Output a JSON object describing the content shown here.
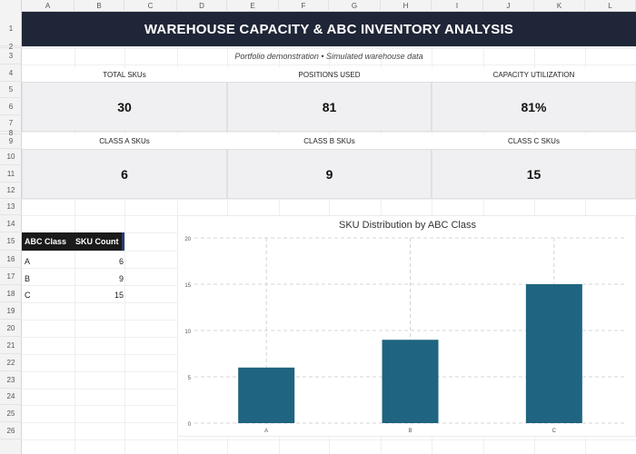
{
  "columns": [
    "A",
    "B",
    "C",
    "D",
    "E",
    "F",
    "G",
    "H",
    "I",
    "J",
    "K",
    "L"
  ],
  "rows": [
    "1",
    "2",
    "3",
    "4",
    "5",
    "6",
    "7",
    "8",
    "9",
    "10",
    "11",
    "12",
    "13",
    "14",
    "15",
    "16",
    "17",
    "18",
    "19",
    "20",
    "21",
    "22",
    "23",
    "24",
    "25",
    "26"
  ],
  "title": "WAREHOUSE CAPACITY & ABC INVENTORY ANALYSIS",
  "subtitle": "Portfolio demonstration • Simulated warehouse data",
  "kpis_row1": [
    {
      "label": "TOTAL SKUs",
      "value": "30"
    },
    {
      "label": "POSITIONS USED",
      "value": "81"
    },
    {
      "label": "CAPACITY UTILIZATION",
      "value": "81%"
    }
  ],
  "kpis_row2": [
    {
      "label": "CLASS A SKUs",
      "value": "6"
    },
    {
      "label": "CLASS B SKUs",
      "value": "9"
    },
    {
      "label": "CLASS C SKUs",
      "value": "15"
    }
  ],
  "summary_table": {
    "headers": [
      "ABC Class",
      "SKU Count"
    ],
    "rows": [
      [
        "A",
        "6"
      ],
      [
        "B",
        "9"
      ],
      [
        "C",
        "15"
      ]
    ]
  },
  "colors": {
    "banner": "#1f2637",
    "bar": "#1f6480"
  },
  "chart_data": {
    "type": "bar",
    "title": "SKU Distribution by ABC Class",
    "categories": [
      "A",
      "B",
      "C"
    ],
    "values": [
      6,
      9,
      15
    ],
    "ylim": [
      0,
      20
    ],
    "yticks": [
      "0",
      "5",
      "10",
      "15",
      "20"
    ],
    "xlabel": "",
    "ylabel": "",
    "grid": true,
    "legend": "none"
  }
}
